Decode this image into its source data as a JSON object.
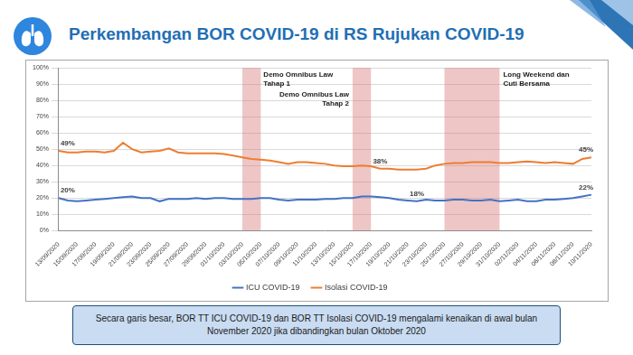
{
  "header": {
    "title": "Perkembangan BOR COVID-19 di RS Rujukan COVID-19"
  },
  "chart_data": {
    "type": "line",
    "categories": [
      "13/09/2020",
      null,
      "15/09/2020",
      null,
      "17/09/2020",
      null,
      "19/09/2020",
      null,
      "21/09/2020",
      null,
      "23/09/2020",
      null,
      "25/09/2020",
      null,
      "27/09/2020",
      null,
      "29/09/2020",
      null,
      "01/10/2020",
      null,
      "03/10/2020",
      null,
      "05/10/2020",
      null,
      "07/10/2020",
      null,
      "09/10/2020",
      null,
      "11/10/2020",
      null,
      "13/10/2020",
      null,
      "15/10/2020",
      null,
      "17/10/2020",
      null,
      "19/10/2020",
      null,
      "21/10/2020",
      null,
      "23/10/2020",
      null,
      "25/10/2020",
      null,
      "27/10/2020",
      null,
      "29/10/2020",
      null,
      "31/10/2020",
      null,
      "02/11/2020",
      null,
      "04/11/2020",
      null,
      "06/11/2020",
      null,
      "08/11/2020",
      null,
      "10/11/2020"
    ],
    "series": [
      {
        "name": "ICU COVID-19",
        "color": "#4472c4",
        "values": [
          20,
          18.5,
          18,
          18.5,
          19,
          19.5,
          20,
          20.5,
          21,
          20,
          20,
          18,
          19.5,
          19.5,
          19.5,
          20,
          19.5,
          20,
          20,
          19.5,
          19.5,
          19.5,
          20,
          20,
          19,
          18.5,
          19,
          19,
          19,
          19.5,
          19.5,
          20,
          20,
          21,
          21,
          20.5,
          20,
          19,
          18.5,
          18,
          19,
          18.5,
          18.5,
          19,
          19,
          18.5,
          18.5,
          19,
          18,
          18.5,
          19,
          18,
          18,
          19,
          19,
          19.5,
          20,
          21,
          22
        ],
        "value_labels": [
          "20%",
          null,
          null,
          null,
          null,
          null,
          null,
          null,
          null,
          null,
          null,
          null,
          null,
          null,
          null,
          null,
          null,
          null,
          null,
          null,
          null,
          null,
          null,
          null,
          null,
          null,
          null,
          null,
          null,
          null,
          null,
          null,
          null,
          null,
          null,
          null,
          null,
          null,
          null,
          "18%",
          null,
          null,
          null,
          null,
          null,
          null,
          null,
          null,
          null,
          null,
          null,
          null,
          null,
          null,
          null,
          null,
          null,
          null,
          "22%"
        ]
      },
      {
        "name": "Isolasi COVID-19",
        "color": "#ed7d31",
        "values": [
          49,
          48,
          48,
          48.5,
          48.5,
          48,
          49,
          54,
          50,
          48,
          48.5,
          49,
          50.5,
          48,
          47.5,
          47.5,
          47.5,
          47.5,
          47,
          46,
          45,
          44,
          43.5,
          43,
          42,
          41,
          42,
          42,
          41.5,
          41,
          40,
          39.5,
          39.5,
          40,
          39.5,
          38,
          38,
          37.5,
          37.5,
          37.5,
          38,
          40,
          41,
          41.5,
          41.5,
          42,
          42,
          42,
          41.5,
          41.5,
          42,
          42.5,
          42,
          41.5,
          42,
          41.5,
          41,
          44,
          45
        ],
        "value_labels": [
          "49%",
          null,
          null,
          null,
          null,
          null,
          null,
          null,
          null,
          null,
          null,
          null,
          null,
          null,
          null,
          null,
          null,
          null,
          null,
          null,
          null,
          null,
          null,
          null,
          null,
          null,
          null,
          null,
          null,
          null,
          null,
          null,
          null,
          null,
          null,
          "38%",
          null,
          null,
          null,
          null,
          null,
          null,
          null,
          null,
          null,
          null,
          null,
          null,
          null,
          null,
          null,
          null,
          null,
          null,
          null,
          null,
          null,
          null,
          "45%"
        ]
      }
    ],
    "ylim": [
      0,
      100
    ],
    "yticks": [
      {
        "value": 0,
        "label": "0%"
      },
      {
        "value": 10,
        "label": "10%"
      },
      {
        "value": 20,
        "label": "20%"
      },
      {
        "value": 30,
        "label": "30%"
      },
      {
        "value": 40,
        "label": "40%"
      },
      {
        "value": 50,
        "label": "50%"
      },
      {
        "value": 60,
        "label": "60%"
      },
      {
        "value": 70,
        "label": "70%"
      },
      {
        "value": 80,
        "label": "80%"
      },
      {
        "value": 90,
        "label": "90%"
      },
      {
        "value": 100,
        "label": "100%"
      }
    ],
    "grid": true,
    "legend": "bottom",
    "bands": [
      {
        "label": [
          "Demo Omnibus Law",
          "Tahap 1"
        ],
        "from": "03/10/2020",
        "to": "05/10/2020"
      },
      {
        "label": [
          "Demo Omnibus Law",
          "Tahap 2"
        ],
        "from": "15/10/2020",
        "to": "17/10/2020"
      },
      {
        "label": [
          "Long Weekend dan",
          "Cuti Bersama"
        ],
        "from": "25/10/2020",
        "to": "31/10/2020"
      }
    ]
  },
  "caption": [
    "Secara garis besar, BOR TT ICU COVID-19 dan BOR TT Isolasi COVID-19 mengalami kenaikan di awal bulan",
    "November 2020 jika dibandingkan bulan Oktober 2020"
  ]
}
